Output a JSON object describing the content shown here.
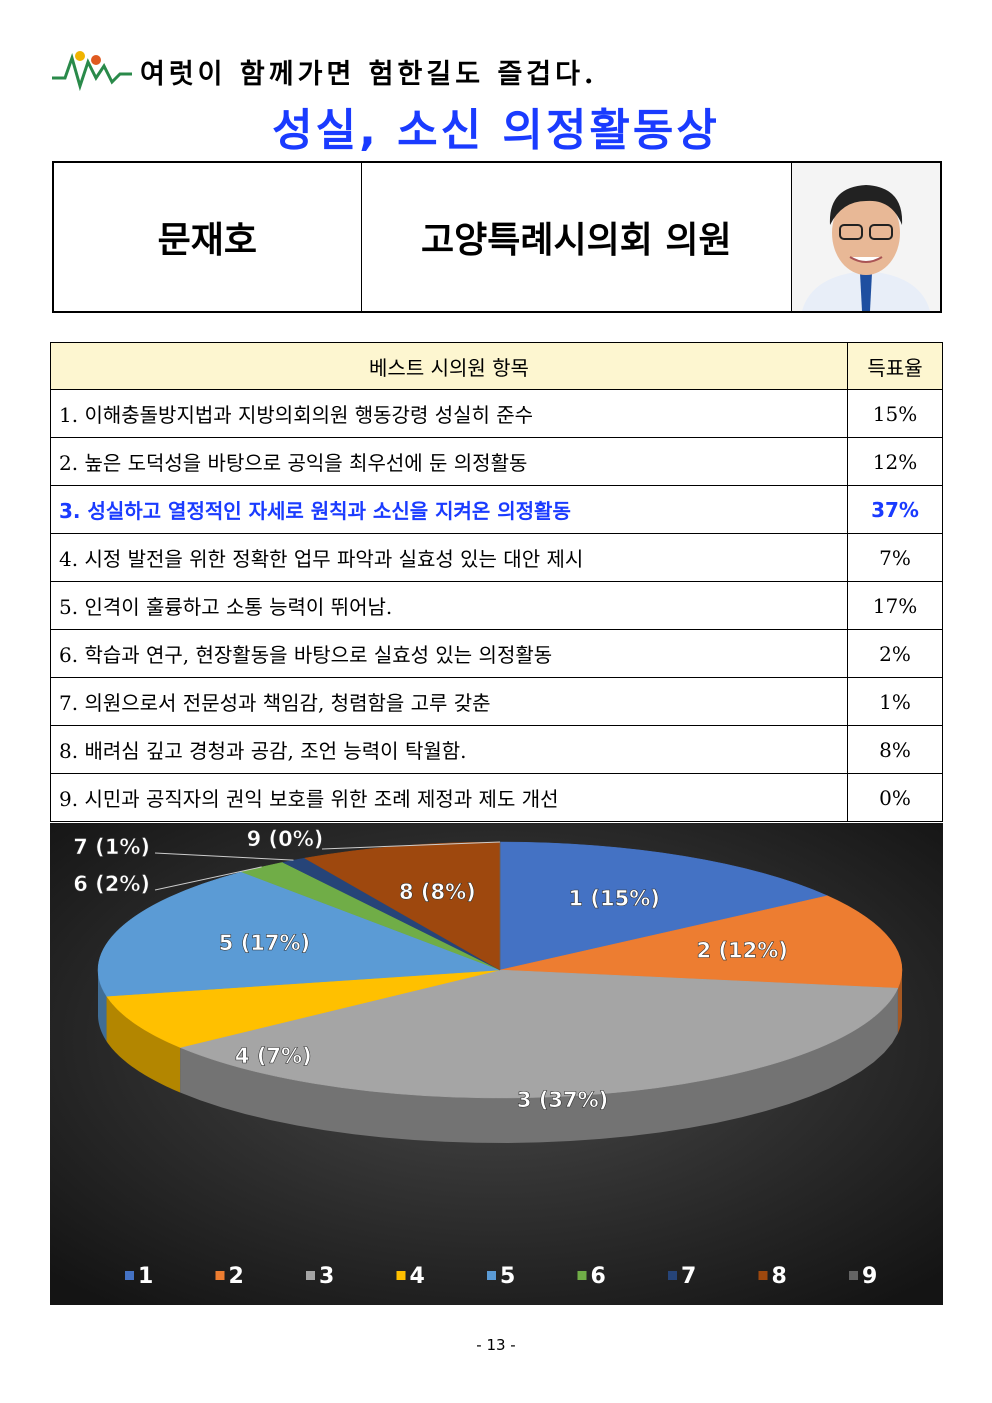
{
  "header": {
    "slogan": "여럿이 함께가면 험한길도 즐겁다.",
    "title": "성실, 소신 의정활동상"
  },
  "profile": {
    "name": "문재호",
    "position": "고양특례시의회 의원"
  },
  "table": {
    "columns": [
      "베스트 시의원 항목",
      "득표율"
    ],
    "rows": [
      [
        "1. 이해충돌방지법과 지방의회의원 행동강령 성실히 준수",
        "15%"
      ],
      [
        "2. 높은 도덕성을 바탕으로 공익을 최우선에 둔 의정활동",
        "12%"
      ],
      [
        "3. 성실하고 열정적인 자세로 원칙과 소신을 지켜온 의정활동",
        "37%"
      ],
      [
        "4. 시정 발전을 위한 정확한 업무 파악과 실효성 있는 대안 제시",
        "7%"
      ],
      [
        "5. 인격이 훌륭하고 소통 능력이 뛰어남.",
        "17%"
      ],
      [
        "6. 학습과 연구, 현장활동을 바탕으로 실효성 있는 의정활동",
        "2%"
      ],
      [
        "7. 의원으로서 전문성과 책임감, 청렴함을 고루 갖춘",
        "1%"
      ],
      [
        "8. 배려심 깊고 경청과 공감, 조언 능력이 탁월함.",
        "8%"
      ],
      [
        "9. 시민과 공직자의 권익 보호를 위한 조례 제정과 제도 개선",
        "0%"
      ]
    ]
  },
  "chart_data": {
    "type": "pie",
    "categories": [
      "1",
      "2",
      "3",
      "4",
      "5",
      "6",
      "7",
      "8",
      "9"
    ],
    "values": [
      15,
      12,
      37,
      7,
      17,
      2,
      1,
      8,
      0
    ],
    "value_labels": [
      "1 (15%)",
      "2 (12%)",
      "3 (37%)",
      "4 (7%)",
      "5 (17%)",
      "6 (2%)",
      "7 (1%)",
      "8 (8%)",
      "9 (0%)"
    ],
    "colors": [
      "#4472c4",
      "#ed7d31",
      "#a5a5a5",
      "#ffc000",
      "#5b9bd5",
      "#70ad47",
      "#264478",
      "#9e480e",
      "#636363"
    ]
  },
  "footer": {
    "page": "- 13 -"
  }
}
